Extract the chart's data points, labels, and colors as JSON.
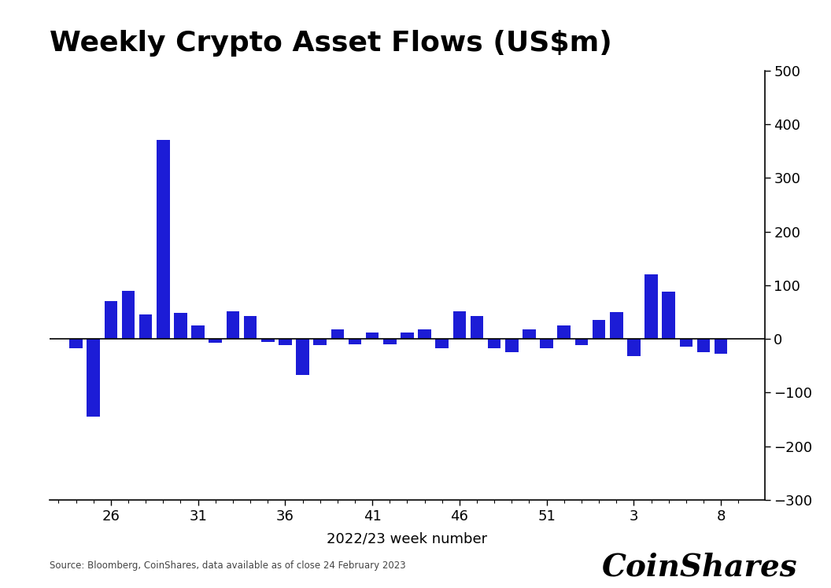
{
  "title": "Weekly Crypto Asset Flows (US$m)",
  "xlabel": "2022/23 week number",
  "bar_color": "#1c1cd6",
  "background_color": "#ffffff",
  "ylim": [
    -300,
    500
  ],
  "yticks": [
    -300,
    -200,
    -100,
    0,
    100,
    200,
    300,
    400,
    500
  ],
  "xtick_labels": [
    "26",
    "31",
    "36",
    "41",
    "46",
    "51",
    "3",
    "8"
  ],
  "xtick_positions": [
    26,
    31,
    36,
    41,
    46,
    51,
    56,
    61
  ],
  "source_text": "Source: Bloomberg, CoinShares, data available as of close 24 February 2023",
  "coinshares_text": "CoinShares",
  "week_indices": [
    24,
    25,
    26,
    27,
    28,
    29,
    30,
    31,
    32,
    33,
    34,
    35,
    36,
    37,
    38,
    39,
    40,
    41,
    42,
    43,
    44,
    45,
    46,
    47,
    48,
    49,
    50,
    51,
    52,
    53,
    54,
    55,
    56,
    57,
    58,
    59,
    60,
    61
  ],
  "values": [
    -18,
    -145,
    70,
    90,
    45,
    370,
    48,
    25,
    -8,
    52,
    42,
    -6,
    -12,
    -68,
    -12,
    18,
    -10,
    12,
    -10,
    12,
    18,
    -18,
    52,
    42,
    -18,
    -25,
    18,
    -18,
    25,
    -12,
    35,
    50,
    -32,
    120,
    88,
    -14,
    -25,
    -28
  ]
}
